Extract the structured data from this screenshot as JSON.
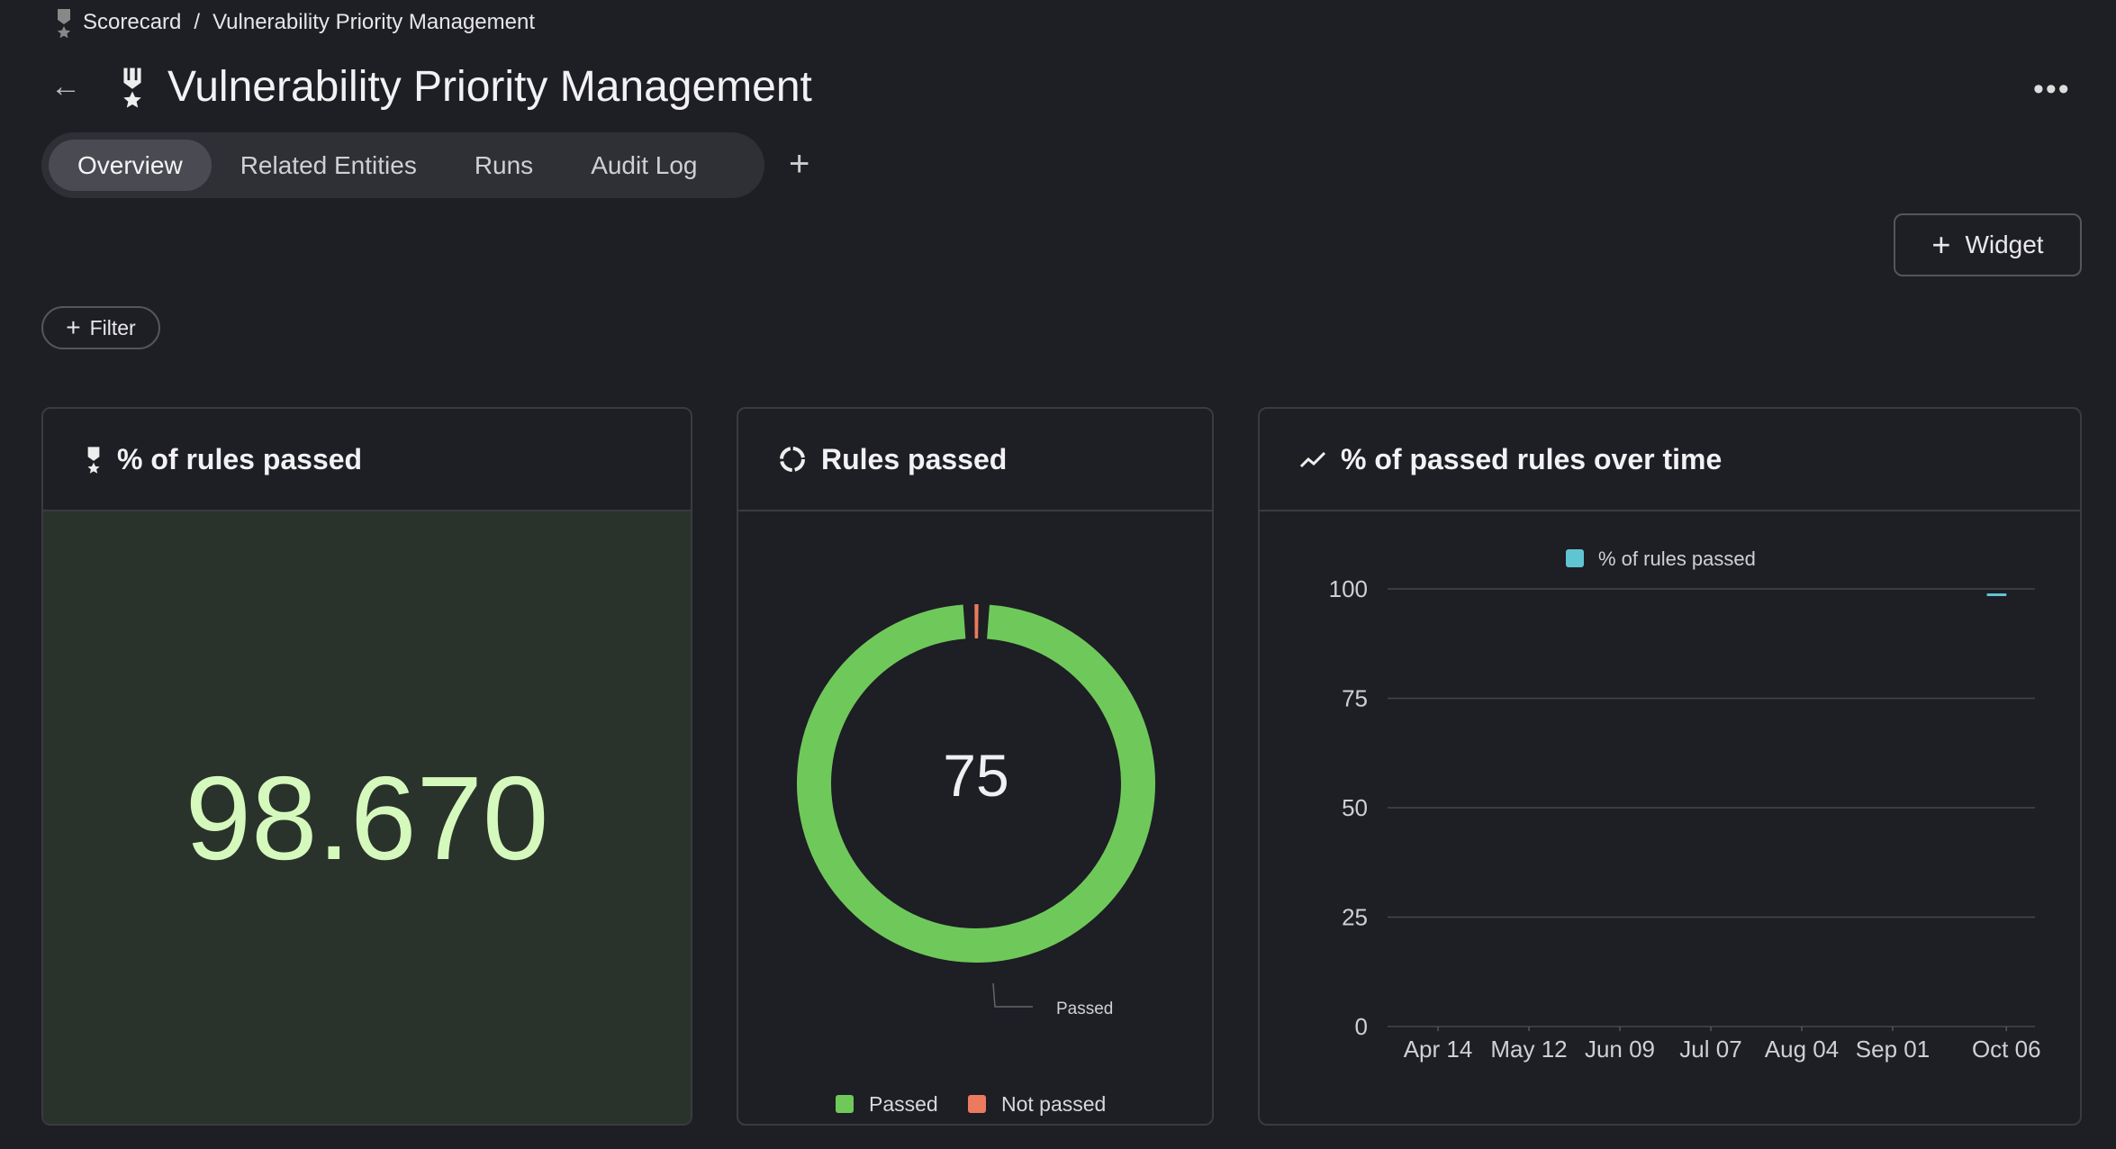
{
  "breadcrumb": {
    "items": [
      "Scorecard",
      "Vulnerability Priority Management"
    ],
    "separator": "/",
    "icon": "medal-icon"
  },
  "header": {
    "title": "Vulnerability Priority Management",
    "back_icon": "arrow-left-icon",
    "more_icon": "more-horizontal-icon",
    "more_label": "•••"
  },
  "tabs": [
    {
      "label": "Overview",
      "active": true
    },
    {
      "label": "Related Entities"
    },
    {
      "label": "Runs"
    },
    {
      "label": "Audit Log"
    }
  ],
  "add_tab_label": "+",
  "widget_button": {
    "icon": "+",
    "label": "Widget"
  },
  "filter_button": {
    "icon": "+",
    "label": "Filter"
  },
  "cards": {
    "percent": {
      "title": "% of rules passed",
      "icon": "medal-icon",
      "value": "98.670",
      "value_color": "#d5f9bd"
    },
    "donut": {
      "title": "Rules passed",
      "icon": "donut-icon",
      "center_label": "75",
      "callout_label": "Passed"
    },
    "line": {
      "title": "% of passed rules over time",
      "icon": "trend-line-icon"
    }
  },
  "chart_data": [
    {
      "type": "pie",
      "variant": "donut",
      "total": 75,
      "slices": [
        {
          "name": "Passed",
          "value": 74,
          "color": "#6fc95a"
        },
        {
          "name": "Not passed",
          "value": 1,
          "color": "#ec7a5e"
        }
      ],
      "legend": "bottom"
    },
    {
      "type": "line",
      "series": [
        {
          "name": "% of rules passed",
          "color": "#5fc6d1",
          "points": [
            {
              "x": "Sep 30",
              "y": 98.67
            },
            {
              "x": "Oct 06",
              "y": 98.67
            }
          ]
        }
      ],
      "x_ticks": [
        "Apr 14",
        "May 12",
        "Jun 09",
        "Jul 07",
        "Aug 04",
        "Sep 01",
        "Oct 06"
      ],
      "y_ticks": [
        0,
        25,
        50,
        75,
        100
      ],
      "ylim": [
        0,
        100
      ],
      "grid": true,
      "legend": "top"
    }
  ]
}
